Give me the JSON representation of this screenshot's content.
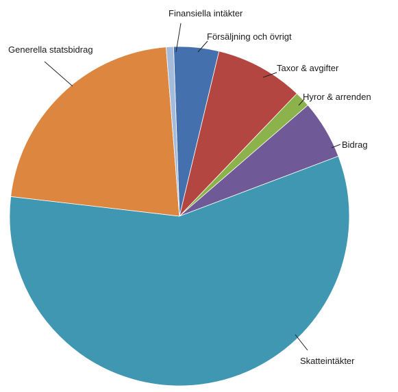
{
  "chart_data": {
    "type": "pie",
    "title": "",
    "start_angle_deg": -2,
    "direction": "clockwise",
    "slices": [
      {
        "label": "Försäljning och övrigt",
        "value": 4.3,
        "color": "#4471ad"
      },
      {
        "label": "Taxor & avgifter",
        "value": 8.4,
        "color": "#b34641"
      },
      {
        "label": "Hyror & arrenden",
        "value": 1.5,
        "color": "#8bb24b"
      },
      {
        "label": "Bidrag",
        "value": 5.6,
        "color": "#6f5996"
      },
      {
        "label": "Skatteintäkter",
        "value": 57.6,
        "color": "#3f97b2"
      },
      {
        "label": "Generella statsbidrag",
        "value": 21.9,
        "color": "#dc863f"
      },
      {
        "label": "Finansiella intäkter",
        "value": 0.7,
        "color": "#a5bbdc"
      }
    ]
  }
}
